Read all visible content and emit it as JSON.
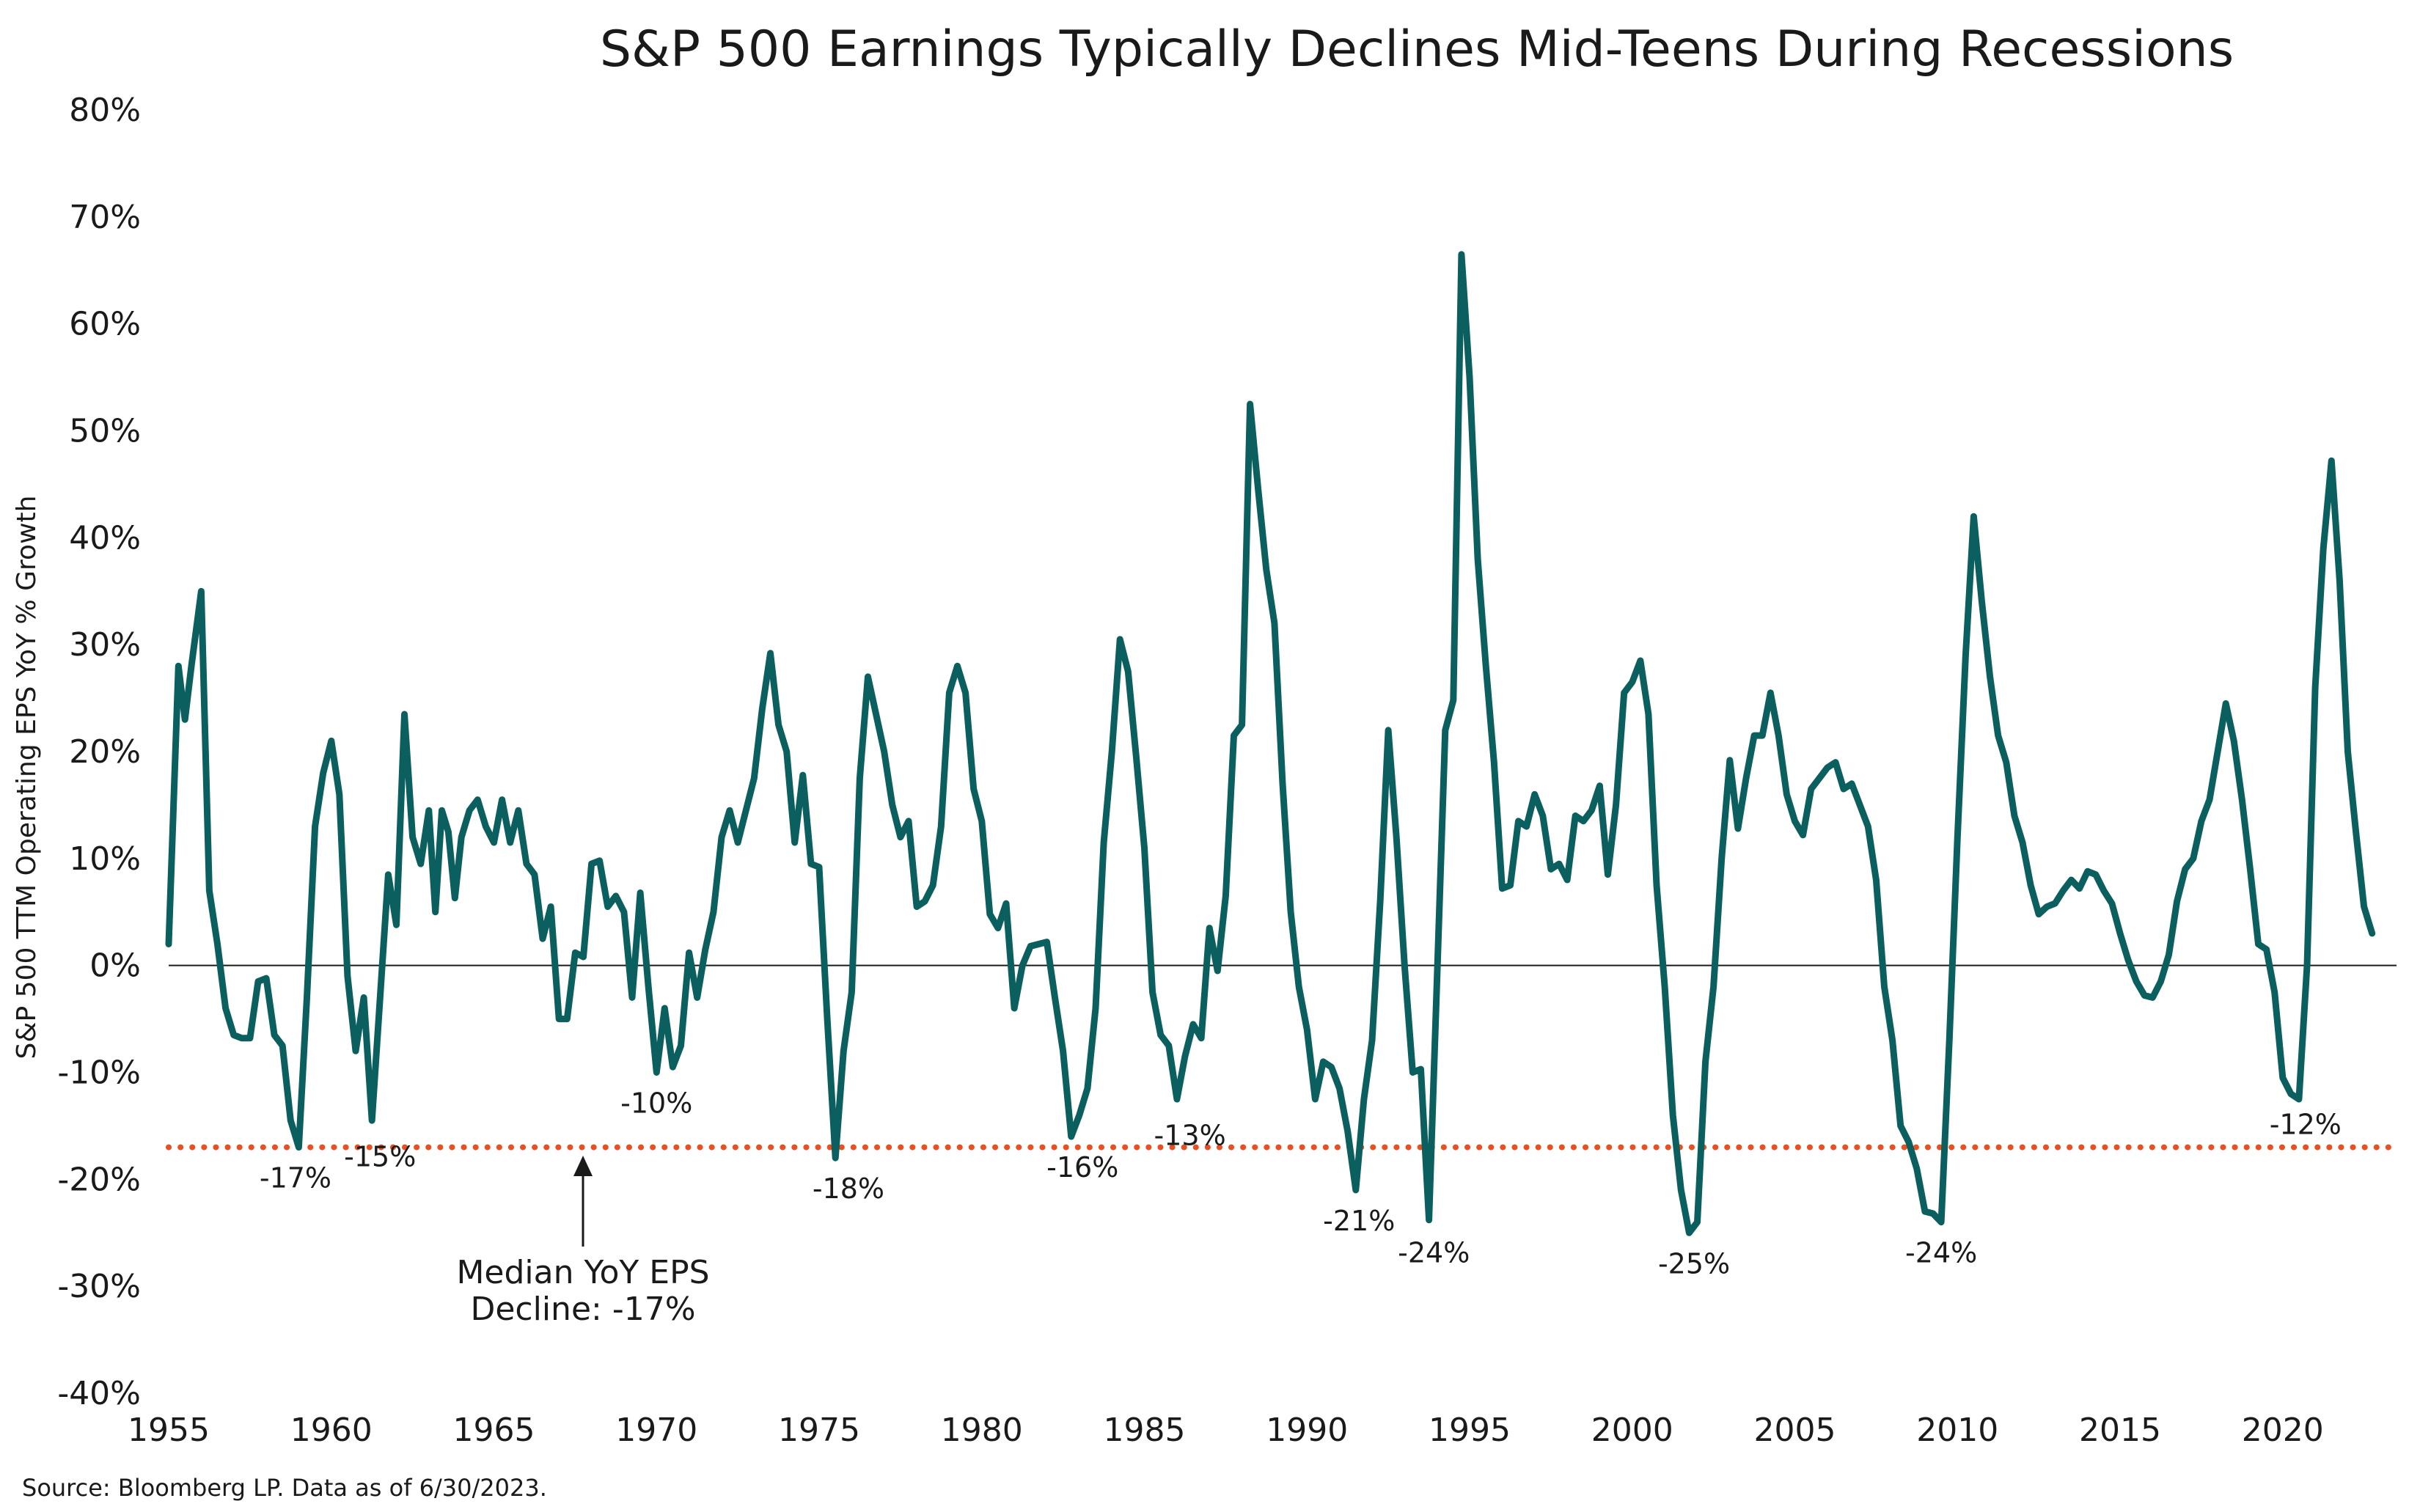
{
  "chart_data": {
    "type": "line",
    "title": "S&P 500 Earnings Typically Declines Mid-Teens During Recessions",
    "ylabel": "S&P 500 TTM Operating EPS YoY % Growth",
    "xlabel": "",
    "xlim": [
      1955,
      2023.5
    ],
    "ylim": [
      -40,
      80
    ],
    "y_ticks": [
      -40,
      -30,
      -20,
      -10,
      0,
      10,
      20,
      30,
      40,
      50,
      60,
      70,
      80
    ],
    "y_tick_labels": [
      "-40%",
      "-30%",
      "-20%",
      "-10%",
      "0%",
      "10%",
      "20%",
      "30%",
      "40%",
      "50%",
      "60%",
      "70%",
      "80%"
    ],
    "x_ticks": [
      1955,
      1960,
      1965,
      1970,
      1975,
      1980,
      1985,
      1990,
      1995,
      2000,
      2005,
      2010,
      2015,
      2020
    ],
    "x_tick_labels": [
      "1955",
      "1960",
      "1965",
      "1970",
      "1975",
      "1980",
      "1985",
      "1990",
      "1995",
      "2000",
      "2005",
      "2010",
      "2015",
      "2020"
    ],
    "grid": false,
    "zero_line": true,
    "line_color": "#0b5f5f",
    "median_color": "#e8501f",
    "median_value": -17,
    "series": [
      {
        "points": [
          [
            1955.0,
            2
          ],
          [
            1955.3,
            28
          ],
          [
            1955.5,
            23
          ],
          [
            1955.7,
            28
          ],
          [
            1956.0,
            35
          ],
          [
            1956.25,
            7
          ],
          [
            1956.5,
            2
          ],
          [
            1956.75,
            -4
          ],
          [
            1957.0,
            -6.5
          ],
          [
            1957.25,
            -6.8
          ],
          [
            1957.5,
            -6.8
          ],
          [
            1957.75,
            -1.5
          ],
          [
            1958.0,
            -1.2
          ],
          [
            1958.25,
            -6.5
          ],
          [
            1958.5,
            -7.5
          ],
          [
            1958.75,
            -14.5
          ],
          [
            1959.0,
            -17
          ],
          [
            1959.25,
            -3
          ],
          [
            1959.5,
            13
          ],
          [
            1959.75,
            18
          ],
          [
            1960.0,
            21
          ],
          [
            1960.25,
            16
          ],
          [
            1960.5,
            -1
          ],
          [
            1960.75,
            -8
          ],
          [
            1961.0,
            -3
          ],
          [
            1961.25,
            -14.5
          ],
          [
            1961.5,
            -3
          ],
          [
            1961.75,
            8.5
          ],
          [
            1962.0,
            3.8
          ],
          [
            1962.25,
            23.5
          ],
          [
            1962.5,
            12
          ],
          [
            1962.75,
            9.5
          ],
          [
            1963.0,
            14.5
          ],
          [
            1963.2,
            5
          ],
          [
            1963.4,
            14.5
          ],
          [
            1963.6,
            12.5
          ],
          [
            1963.8,
            6.3
          ],
          [
            1964.0,
            12
          ],
          [
            1964.25,
            14.5
          ],
          [
            1964.5,
            15.5
          ],
          [
            1964.75,
            13
          ],
          [
            1965.0,
            11.5
          ],
          [
            1965.25,
            15.5
          ],
          [
            1965.5,
            11.5
          ],
          [
            1965.75,
            14.5
          ],
          [
            1966.0,
            9.5
          ],
          [
            1966.25,
            8.5
          ],
          [
            1966.5,
            2.5
          ],
          [
            1966.75,
            5.5
          ],
          [
            1967.0,
            -5
          ],
          [
            1967.25,
            -5
          ],
          [
            1967.5,
            1.2
          ],
          [
            1967.75,
            0.8
          ],
          [
            1968.0,
            9.5
          ],
          [
            1968.25,
            9.8
          ],
          [
            1968.5,
            5.5
          ],
          [
            1968.75,
            6.5
          ],
          [
            1969.0,
            5
          ],
          [
            1969.25,
            -3
          ],
          [
            1969.5,
            6.8
          ],
          [
            1969.75,
            -2
          ],
          [
            1970.0,
            -10
          ],
          [
            1970.25,
            -4
          ],
          [
            1970.5,
            -9.5
          ],
          [
            1970.75,
            -7.5
          ],
          [
            1971.0,
            1.2
          ],
          [
            1971.25,
            -3
          ],
          [
            1971.5,
            1.5
          ],
          [
            1971.75,
            5
          ],
          [
            1972.0,
            12
          ],
          [
            1972.25,
            14.5
          ],
          [
            1972.5,
            11.5
          ],
          [
            1972.75,
            14.5
          ],
          [
            1973.0,
            17.5
          ],
          [
            1973.25,
            24
          ],
          [
            1973.5,
            29.2
          ],
          [
            1973.75,
            22.5
          ],
          [
            1974.0,
            20
          ],
          [
            1974.25,
            11.5
          ],
          [
            1974.5,
            17.8
          ],
          [
            1974.75,
            9.5
          ],
          [
            1975.0,
            9.2
          ],
          [
            1975.25,
            -5
          ],
          [
            1975.5,
            -18
          ],
          [
            1975.75,
            -8
          ],
          [
            1976.0,
            -2.5
          ],
          [
            1976.25,
            17.5
          ],
          [
            1976.5,
            27
          ],
          [
            1976.75,
            23.5
          ],
          [
            1977.0,
            20
          ],
          [
            1977.25,
            15
          ],
          [
            1977.5,
            12
          ],
          [
            1977.75,
            13.5
          ],
          [
            1978.0,
            5.5
          ],
          [
            1978.25,
            6
          ],
          [
            1978.5,
            7.5
          ],
          [
            1978.75,
            13
          ],
          [
            1979.0,
            25.5
          ],
          [
            1979.25,
            28
          ],
          [
            1979.5,
            25.5
          ],
          [
            1979.75,
            16.5
          ],
          [
            1980.0,
            13.5
          ],
          [
            1980.25,
            4.8
          ],
          [
            1980.5,
            3.5
          ],
          [
            1980.75,
            5.8
          ],
          [
            1981.0,
            -4
          ],
          [
            1981.25,
            0
          ],
          [
            1981.5,
            1.8
          ],
          [
            1981.75,
            2
          ],
          [
            1982.0,
            2.2
          ],
          [
            1982.25,
            -3
          ],
          [
            1982.5,
            -8
          ],
          [
            1982.75,
            -16
          ],
          [
            1983.0,
            -14
          ],
          [
            1983.25,
            -11.5
          ],
          [
            1983.5,
            -4
          ],
          [
            1983.75,
            11.5
          ],
          [
            1984.0,
            20
          ],
          [
            1984.25,
            30.5
          ],
          [
            1984.5,
            27.5
          ],
          [
            1984.75,
            19.5
          ],
          [
            1985.0,
            11
          ],
          [
            1985.25,
            -2.5
          ],
          [
            1985.5,
            -6.5
          ],
          [
            1985.75,
            -7.5
          ],
          [
            1986.0,
            -12.5
          ],
          [
            1986.25,
            -8.5
          ],
          [
            1986.5,
            -5.5
          ],
          [
            1986.75,
            -6.8
          ],
          [
            1987.0,
            3.5
          ],
          [
            1987.25,
            -0.5
          ],
          [
            1987.5,
            6.5
          ],
          [
            1987.75,
            21.5
          ],
          [
            1988.0,
            22.5
          ],
          [
            1988.25,
            52.5
          ],
          [
            1988.5,
            44.5
          ],
          [
            1988.75,
            37
          ],
          [
            1989.0,
            32
          ],
          [
            1989.25,
            17
          ],
          [
            1989.5,
            5
          ],
          [
            1989.75,
            -2
          ],
          [
            1990.0,
            -6
          ],
          [
            1990.25,
            -12.5
          ],
          [
            1990.5,
            -9
          ],
          [
            1990.75,
            -9.5
          ],
          [
            1991.0,
            -11.5
          ],
          [
            1991.25,
            -15.5
          ],
          [
            1991.5,
            -21
          ],
          [
            1991.75,
            -12.5
          ],
          [
            1992.0,
            -7
          ],
          [
            1992.25,
            6
          ],
          [
            1992.5,
            22
          ],
          [
            1992.75,
            12
          ],
          [
            1993.0,
            0
          ],
          [
            1993.25,
            -10
          ],
          [
            1993.5,
            -9.7
          ],
          [
            1993.75,
            -23.8
          ],
          [
            1994.0,
            -1
          ],
          [
            1994.25,
            22
          ],
          [
            1994.5,
            24.8
          ],
          [
            1994.75,
            66.5
          ],
          [
            1995.0,
            55
          ],
          [
            1995.25,
            38
          ],
          [
            1995.5,
            28
          ],
          [
            1995.75,
            19
          ],
          [
            1996.0,
            7.2
          ],
          [
            1996.25,
            7.5
          ],
          [
            1996.5,
            13.5
          ],
          [
            1996.75,
            13
          ],
          [
            1997.0,
            16
          ],
          [
            1997.25,
            14
          ],
          [
            1997.5,
            9
          ],
          [
            1997.75,
            9.5
          ],
          [
            1998.0,
            8
          ],
          [
            1998.25,
            14
          ],
          [
            1998.5,
            13.5
          ],
          [
            1998.75,
            14.5
          ],
          [
            1999.0,
            16.8
          ],
          [
            1999.25,
            8.5
          ],
          [
            1999.5,
            15
          ],
          [
            1999.75,
            25.5
          ],
          [
            2000.0,
            26.5
          ],
          [
            2000.25,
            28.5
          ],
          [
            2000.5,
            23.5
          ],
          [
            2000.75,
            7.5
          ],
          [
            2001.0,
            -2
          ],
          [
            2001.25,
            -14
          ],
          [
            2001.5,
            -21
          ],
          [
            2001.75,
            -25
          ],
          [
            2002.0,
            -24
          ],
          [
            2002.25,
            -9
          ],
          [
            2002.5,
            -2
          ],
          [
            2002.75,
            10
          ],
          [
            2003.0,
            19.2
          ],
          [
            2003.25,
            12.8
          ],
          [
            2003.5,
            17.5
          ],
          [
            2003.75,
            21.5
          ],
          [
            2004.0,
            21.5
          ],
          [
            2004.25,
            25.5
          ],
          [
            2004.5,
            21.5
          ],
          [
            2004.75,
            16
          ],
          [
            2005.0,
            13.5
          ],
          [
            2005.25,
            12.2
          ],
          [
            2005.5,
            16.5
          ],
          [
            2005.75,
            17.5
          ],
          [
            2006.0,
            18.5
          ],
          [
            2006.25,
            19
          ],
          [
            2006.5,
            16.5
          ],
          [
            2006.75,
            17
          ],
          [
            2007.0,
            15
          ],
          [
            2007.25,
            13
          ],
          [
            2007.5,
            8
          ],
          [
            2007.75,
            -2
          ],
          [
            2008.0,
            -7
          ],
          [
            2008.25,
            -15
          ],
          [
            2008.5,
            -16.5
          ],
          [
            2008.75,
            -19
          ],
          [
            2009.0,
            -23
          ],
          [
            2009.25,
            -23.2
          ],
          [
            2009.5,
            -24
          ],
          [
            2009.75,
            -7
          ],
          [
            2010.0,
            12
          ],
          [
            2010.25,
            29
          ],
          [
            2010.5,
            42
          ],
          [
            2010.75,
            34
          ],
          [
            2011.0,
            27
          ],
          [
            2011.25,
            21.5
          ],
          [
            2011.5,
            19
          ],
          [
            2011.75,
            14
          ],
          [
            2012.0,
            11.5
          ],
          [
            2012.25,
            7.5
          ],
          [
            2012.5,
            4.8
          ],
          [
            2012.75,
            5.5
          ],
          [
            2013.0,
            5.8
          ],
          [
            2013.25,
            7
          ],
          [
            2013.5,
            8
          ],
          [
            2013.75,
            7.2
          ],
          [
            2014.0,
            8.8
          ],
          [
            2014.25,
            8.5
          ],
          [
            2014.5,
            7
          ],
          [
            2014.75,
            5.8
          ],
          [
            2015.0,
            3
          ],
          [
            2015.25,
            0.5
          ],
          [
            2015.5,
            -1.5
          ],
          [
            2015.75,
            -2.8
          ],
          [
            2016.0,
            -3
          ],
          [
            2016.25,
            -1.5
          ],
          [
            2016.5,
            1
          ],
          [
            2016.75,
            6
          ],
          [
            2017.0,
            9
          ],
          [
            2017.25,
            10
          ],
          [
            2017.5,
            13.5
          ],
          [
            2017.75,
            15.5
          ],
          [
            2018.0,
            20
          ],
          [
            2018.25,
            24.5
          ],
          [
            2018.5,
            21
          ],
          [
            2018.75,
            15.5
          ],
          [
            2019.0,
            9
          ],
          [
            2019.25,
            2
          ],
          [
            2019.5,
            1.5
          ],
          [
            2019.75,
            -2.5
          ],
          [
            2020.0,
            -10.5
          ],
          [
            2020.25,
            -12
          ],
          [
            2020.5,
            -12.5
          ],
          [
            2020.75,
            0
          ],
          [
            2021.0,
            26
          ],
          [
            2021.25,
            39
          ],
          [
            2021.5,
            47.2
          ],
          [
            2021.75,
            36
          ],
          [
            2022.0,
            20
          ],
          [
            2022.25,
            12.5
          ],
          [
            2022.5,
            5.5
          ],
          [
            2022.75,
            3
          ]
        ]
      }
    ],
    "annotations": [
      {
        "text": "-17%",
        "x": 1958.9,
        "y": -17
      },
      {
        "text": "-15%",
        "x": 1961.5,
        "y": -15
      },
      {
        "text": "-10%",
        "x": 1970.0,
        "y": -10
      },
      {
        "text": "-18%",
        "x": 1975.9,
        "y": -18
      },
      {
        "text": "-16%",
        "x": 1983.1,
        "y": -16
      },
      {
        "text": "-13%",
        "x": 1986.4,
        "y": -13
      },
      {
        "text": "-21%",
        "x": 1991.6,
        "y": -21
      },
      {
        "text": "-24%",
        "x": 1993.9,
        "y": -24
      },
      {
        "text": "-25%",
        "x": 2001.9,
        "y": -25
      },
      {
        "text": "-24%",
        "x": 2009.5,
        "y": -24
      },
      {
        "text": "-12%",
        "x": 2020.7,
        "y": -12
      }
    ],
    "median_label_line1": "Median YoY EPS",
    "median_label_line2": "Decline: -17%",
    "source": "Source: Bloomberg LP. Data as of 6/30/2023."
  }
}
